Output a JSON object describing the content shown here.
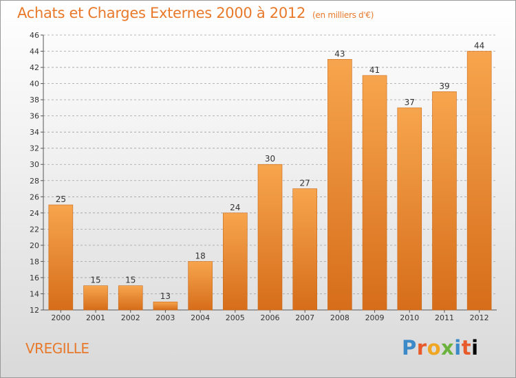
{
  "chart_data": {
    "type": "bar",
    "title": "Achats et Charges Externes 2000 à 2012",
    "subtitle": "(en milliers d'€)",
    "categories": [
      "2000",
      "2001",
      "2002",
      "2003",
      "2004",
      "2005",
      "2006",
      "2007",
      "2008",
      "2009",
      "2010",
      "2011",
      "2012"
    ],
    "values": [
      25,
      15,
      15,
      13,
      18,
      24,
      30,
      27,
      43,
      41,
      37,
      39,
      44
    ],
    "ylim": [
      12,
      46
    ],
    "yticks": [
      12,
      14,
      16,
      18,
      20,
      22,
      24,
      26,
      28,
      30,
      32,
      34,
      36,
      38,
      40,
      42,
      44,
      46
    ],
    "grid": "horizontal dashed",
    "bar_color": "#e8802c",
    "data_labels": true
  },
  "footer": {
    "commune": "VREGILLE",
    "logo": "Proxiti"
  }
}
